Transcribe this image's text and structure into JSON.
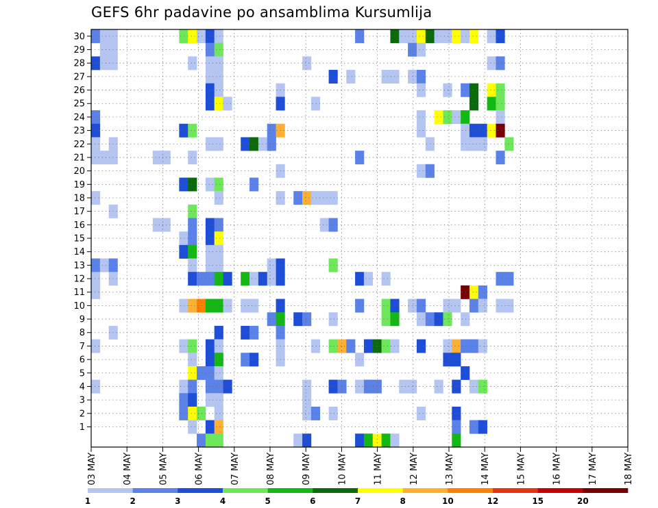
{
  "title": "GEFS 6hr padavine po ansamblima Kursumlija",
  "chart_data": {
    "type": "heatmap",
    "title": "GEFS 6hr padavine po ansamblima Kursumlija",
    "y_ticks": [
      1,
      2,
      3,
      4,
      5,
      6,
      7,
      8,
      9,
      10,
      11,
      12,
      13,
      14,
      15,
      16,
      17,
      18,
      19,
      20,
      21,
      22,
      23,
      24,
      25,
      26,
      27,
      28,
      29,
      30
    ],
    "x_ticks": [
      "03 MAY",
      "04 MAY",
      "05 MAY",
      "06 MAY",
      "07 MAY",
      "08 MAY",
      "09 MAY",
      "10 MAY",
      "11 MAY",
      "12 MAY",
      "13 MAY",
      "14 MAY",
      "15 MAY",
      "16 MAY",
      "17 MAY",
      "18 MAY"
    ],
    "time_steps": 61,
    "grid": true,
    "colorbar": {
      "labels": [
        "1",
        "2",
        "3",
        "4",
        "5",
        "6",
        "7",
        "8",
        "10",
        "12",
        "15",
        "20"
      ],
      "colors": [
        "#b4c5f2",
        "#5b82e8",
        "#1e4ed8",
        "#6ee85a",
        "#14b814",
        "#0b6b0b",
        "#ffff00",
        "#ffb032",
        "#ff7f00",
        "#e83212",
        "#c80000",
        "#780000"
      ]
    },
    "cells": [
      [
        30,
        0,
        1
      ],
      [
        30,
        1,
        0
      ],
      [
        30,
        2,
        0
      ],
      [
        30,
        10,
        3
      ],
      [
        30,
        11,
        6
      ],
      [
        30,
        12,
        0
      ],
      [
        30,
        13,
        2
      ],
      [
        30,
        14,
        0
      ],
      [
        30,
        30,
        1
      ],
      [
        30,
        34,
        5
      ],
      [
        30,
        35,
        0
      ],
      [
        30,
        36,
        0
      ],
      [
        30,
        37,
        6
      ],
      [
        30,
        38,
        5
      ],
      [
        30,
        39,
        0
      ],
      [
        30,
        40,
        0
      ],
      [
        30,
        41,
        6
      ],
      [
        30,
        42,
        0
      ],
      [
        30,
        43,
        6
      ],
      [
        30,
        45,
        0
      ],
      [
        30,
        46,
        2
      ],
      [
        29,
        1,
        0
      ],
      [
        29,
        2,
        0
      ],
      [
        29,
        13,
        1
      ],
      [
        29,
        14,
        3
      ],
      [
        29,
        36,
        1
      ],
      [
        29,
        37,
        0
      ],
      [
        28,
        0,
        2
      ],
      [
        28,
        1,
        0
      ],
      [
        28,
        2,
        0
      ],
      [
        28,
        11,
        0
      ],
      [
        28,
        13,
        0
      ],
      [
        28,
        14,
        0
      ],
      [
        28,
        24,
        0
      ],
      [
        28,
        45,
        0
      ],
      [
        28,
        46,
        1
      ],
      [
        27,
        13,
        0
      ],
      [
        27,
        14,
        0
      ],
      [
        27,
        27,
        2
      ],
      [
        27,
        29,
        0
      ],
      [
        27,
        33,
        0
      ],
      [
        27,
        34,
        0
      ],
      [
        27,
        36,
        0
      ],
      [
        27,
        37,
        1
      ],
      [
        26,
        13,
        2
      ],
      [
        26,
        14,
        0
      ],
      [
        26,
        21,
        0
      ],
      [
        26,
        37,
        0
      ],
      [
        26,
        40,
        0
      ],
      [
        26,
        42,
        1
      ],
      [
        26,
        43,
        5
      ],
      [
        26,
        45,
        6
      ],
      [
        26,
        46,
        3
      ],
      [
        25,
        13,
        2
      ],
      [
        25,
        14,
        6
      ],
      [
        25,
        15,
        0
      ],
      [
        25,
        21,
        2
      ],
      [
        25,
        25,
        0
      ],
      [
        25,
        43,
        5
      ],
      [
        25,
        45,
        4
      ],
      [
        25,
        46,
        3
      ],
      [
        24,
        0,
        1
      ],
      [
        24,
        37,
        0
      ],
      [
        24,
        39,
        6
      ],
      [
        24,
        40,
        3
      ],
      [
        24,
        41,
        0
      ],
      [
        24,
        42,
        4
      ],
      [
        24,
        46,
        0
      ],
      [
        23,
        0,
        2
      ],
      [
        23,
        10,
        2
      ],
      [
        23,
        11,
        3
      ],
      [
        23,
        20,
        1
      ],
      [
        23,
        21,
        7
      ],
      [
        23,
        37,
        0
      ],
      [
        23,
        42,
        0
      ],
      [
        23,
        43,
        2
      ],
      [
        23,
        44,
        2
      ],
      [
        23,
        45,
        6
      ],
      [
        23,
        46,
        11
      ],
      [
        22,
        0,
        0
      ],
      [
        22,
        2,
        0
      ],
      [
        22,
        13,
        0
      ],
      [
        22,
        14,
        0
      ],
      [
        22,
        17,
        2
      ],
      [
        22,
        18,
        5
      ],
      [
        22,
        19,
        0
      ],
      [
        22,
        20,
        1
      ],
      [
        22,
        38,
        0
      ],
      [
        22,
        42,
        0
      ],
      [
        22,
        43,
        0
      ],
      [
        22,
        44,
        0
      ],
      [
        22,
        47,
        3
      ],
      [
        21,
        0,
        0
      ],
      [
        21,
        1,
        0
      ],
      [
        21,
        2,
        0
      ],
      [
        21,
        7,
        0
      ],
      [
        21,
        8,
        0
      ],
      [
        21,
        11,
        0
      ],
      [
        21,
        30,
        1
      ],
      [
        21,
        46,
        1
      ],
      [
        20,
        21,
        0
      ],
      [
        20,
        37,
        0
      ],
      [
        20,
        38,
        1
      ],
      [
        19,
        10,
        2
      ],
      [
        19,
        11,
        5
      ],
      [
        19,
        13,
        0
      ],
      [
        19,
        14,
        3
      ],
      [
        19,
        18,
        1
      ],
      [
        18,
        0,
        0
      ],
      [
        18,
        14,
        0
      ],
      [
        18,
        21,
        0
      ],
      [
        18,
        23,
        1
      ],
      [
        18,
        24,
        7
      ],
      [
        18,
        25,
        0
      ],
      [
        18,
        26,
        0
      ],
      [
        18,
        27,
        0
      ],
      [
        17,
        2,
        0
      ],
      [
        17,
        11,
        3
      ],
      [
        16,
        7,
        0
      ],
      [
        16,
        8,
        0
      ],
      [
        16,
        11,
        1
      ],
      [
        16,
        13,
        2
      ],
      [
        16,
        14,
        1
      ],
      [
        16,
        26,
        0
      ],
      [
        16,
        27,
        1
      ],
      [
        15,
        10,
        0
      ],
      [
        15,
        11,
        1
      ],
      [
        15,
        13,
        2
      ],
      [
        15,
        14,
        6
      ],
      [
        14,
        10,
        2
      ],
      [
        14,
        11,
        4
      ],
      [
        14,
        13,
        0
      ],
      [
        14,
        14,
        0
      ],
      [
        13,
        0,
        1
      ],
      [
        13,
        1,
        0
      ],
      [
        13,
        2,
        1
      ],
      [
        13,
        11,
        0
      ],
      [
        13,
        13,
        0
      ],
      [
        13,
        14,
        0
      ],
      [
        13,
        20,
        0
      ],
      [
        13,
        21,
        2
      ],
      [
        13,
        27,
        3
      ],
      [
        12,
        0,
        0
      ],
      [
        12,
        2,
        0
      ],
      [
        12,
        11,
        2
      ],
      [
        12,
        12,
        1
      ],
      [
        12,
        13,
        1
      ],
      [
        12,
        14,
        4
      ],
      [
        12,
        15,
        2
      ],
      [
        12,
        17,
        4
      ],
      [
        12,
        18,
        0
      ],
      [
        12,
        19,
        2
      ],
      [
        12,
        20,
        0
      ],
      [
        12,
        21,
        2
      ],
      [
        12,
        30,
        2
      ],
      [
        12,
        31,
        0
      ],
      [
        12,
        33,
        0
      ],
      [
        12,
        46,
        1
      ],
      [
        12,
        47,
        1
      ],
      [
        11,
        0,
        0
      ],
      [
        11,
        42,
        11
      ],
      [
        11,
        43,
        6
      ],
      [
        11,
        44,
        1
      ],
      [
        10,
        10,
        0
      ],
      [
        10,
        11,
        7
      ],
      [
        10,
        12,
        8
      ],
      [
        10,
        13,
        4
      ],
      [
        10,
        14,
        4
      ],
      [
        10,
        15,
        0
      ],
      [
        10,
        17,
        0
      ],
      [
        10,
        18,
        0
      ],
      [
        10,
        21,
        2
      ],
      [
        10,
        30,
        1
      ],
      [
        10,
        33,
        3
      ],
      [
        10,
        34,
        2
      ],
      [
        10,
        36,
        0
      ],
      [
        10,
        37,
        1
      ],
      [
        10,
        40,
        0
      ],
      [
        10,
        41,
        0
      ],
      [
        10,
        43,
        1
      ],
      [
        10,
        44,
        0
      ],
      [
        10,
        46,
        0
      ],
      [
        10,
        47,
        0
      ],
      [
        9,
        20,
        1
      ],
      [
        9,
        21,
        4
      ],
      [
        9,
        23,
        2
      ],
      [
        9,
        24,
        1
      ],
      [
        9,
        27,
        0
      ],
      [
        9,
        33,
        3
      ],
      [
        9,
        34,
        4
      ],
      [
        9,
        37,
        0
      ],
      [
        9,
        38,
        1
      ],
      [
        9,
        39,
        2
      ],
      [
        9,
        40,
        3
      ],
      [
        9,
        42,
        0
      ],
      [
        8,
        2,
        0
      ],
      [
        8,
        14,
        2
      ],
      [
        8,
        17,
        2
      ],
      [
        8,
        18,
        1
      ],
      [
        8,
        21,
        1
      ],
      [
        7,
        0,
        0
      ],
      [
        7,
        10,
        0
      ],
      [
        7,
        11,
        3
      ],
      [
        7,
        13,
        2
      ],
      [
        7,
        14,
        0
      ],
      [
        7,
        21,
        0
      ],
      [
        7,
        25,
        0
      ],
      [
        7,
        27,
        3
      ],
      [
        7,
        28,
        7
      ],
      [
        7,
        29,
        1
      ],
      [
        7,
        31,
        2
      ],
      [
        7,
        32,
        5
      ],
      [
        7,
        33,
        3
      ],
      [
        7,
        34,
        0
      ],
      [
        7,
        37,
        2
      ],
      [
        7,
        40,
        0
      ],
      [
        7,
        41,
        7
      ],
      [
        7,
        42,
        1
      ],
      [
        7,
        43,
        1
      ],
      [
        7,
        44,
        0
      ],
      [
        6,
        11,
        0
      ],
      [
        6,
        13,
        2
      ],
      [
        6,
        14,
        4
      ],
      [
        6,
        17,
        1
      ],
      [
        6,
        18,
        2
      ],
      [
        6,
        21,
        0
      ],
      [
        6,
        30,
        0
      ],
      [
        6,
        40,
        2
      ],
      [
        6,
        41,
        2
      ],
      [
        5,
        11,
        6
      ],
      [
        5,
        12,
        1
      ],
      [
        5,
        13,
        1
      ],
      [
        5,
        14,
        0
      ],
      [
        5,
        42,
        2
      ],
      [
        4,
        0,
        0
      ],
      [
        4,
        10,
        0
      ],
      [
        4,
        11,
        1
      ],
      [
        4,
        13,
        1
      ],
      [
        4,
        14,
        1
      ],
      [
        4,
        15,
        2
      ],
      [
        4,
        24,
        0
      ],
      [
        4,
        27,
        2
      ],
      [
        4,
        28,
        1
      ],
      [
        4,
        30,
        0
      ],
      [
        4,
        31,
        1
      ],
      [
        4,
        32,
        1
      ],
      [
        4,
        35,
        0
      ],
      [
        4,
        36,
        0
      ],
      [
        4,
        39,
        0
      ],
      [
        4,
        41,
        2
      ],
      [
        4,
        43,
        0
      ],
      [
        4,
        44,
        3
      ],
      [
        3,
        10,
        1
      ],
      [
        3,
        11,
        2
      ],
      [
        3,
        13,
        0
      ],
      [
        3,
        14,
        0
      ],
      [
        3,
        24,
        0
      ],
      [
        2,
        10,
        1
      ],
      [
        2,
        11,
        6
      ],
      [
        2,
        12,
        3
      ],
      [
        2,
        14,
        0
      ],
      [
        2,
        24,
        0
      ],
      [
        2,
        25,
        1
      ],
      [
        2,
        27,
        0
      ],
      [
        2,
        37,
        0
      ],
      [
        2,
        41,
        2
      ],
      [
        1,
        11,
        0
      ],
      [
        1,
        13,
        2
      ],
      [
        1,
        14,
        7
      ],
      [
        1,
        41,
        1
      ],
      [
        1,
        43,
        1
      ],
      [
        1,
        44,
        2
      ],
      [
        0,
        12,
        1
      ],
      [
        0,
        13,
        3
      ],
      [
        0,
        14,
        3
      ],
      [
        0,
        23,
        0
      ],
      [
        0,
        24,
        2
      ],
      [
        0,
        30,
        2
      ],
      [
        0,
        31,
        4
      ],
      [
        0,
        32,
        6
      ],
      [
        0,
        33,
        4
      ],
      [
        0,
        34,
        0
      ],
      [
        0,
        41,
        4
      ]
    ]
  }
}
